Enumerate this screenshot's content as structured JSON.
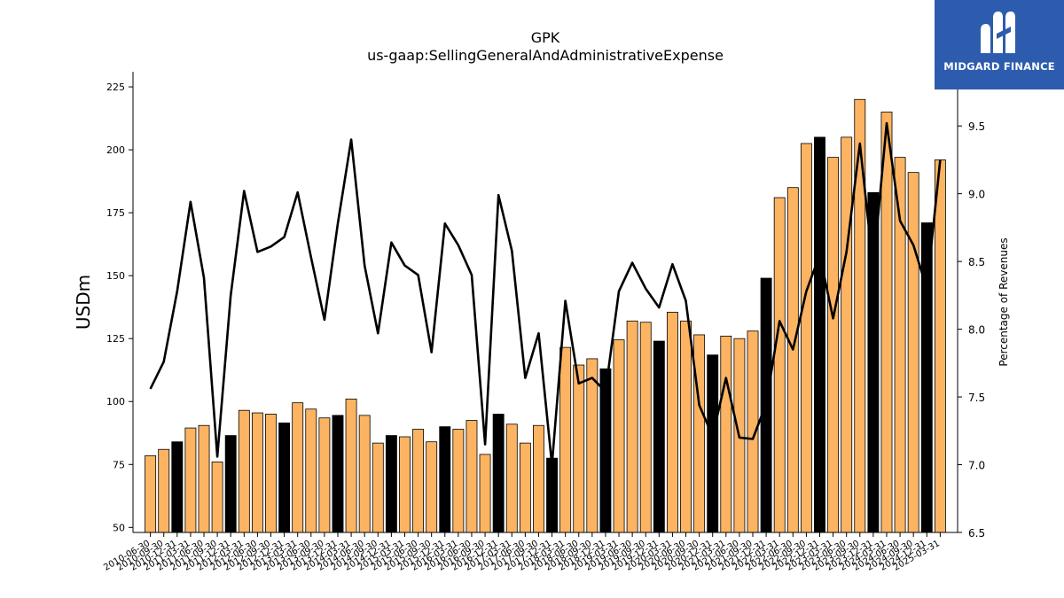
{
  "brand": {
    "name": "MIDGARD FINANCE",
    "color": "#2d5cae",
    "icon": "midgard-logo-icon"
  },
  "colors": {
    "bar_default": "#fdb462",
    "bar_highlight": "#000000",
    "line": "#000000"
  },
  "chart_data": {
    "type": "bar+line",
    "title": "GPK",
    "subtitle": "us-gaap:SellingGeneralAndAdministrativeExpense",
    "ylabel": "USDm",
    "y2label": "Percentage of Revenues",
    "ylim": [
      48,
      231
    ],
    "y2lim": [
      6.5,
      9.9
    ],
    "yticks": [
      50,
      75,
      100,
      125,
      150,
      175,
      200,
      225
    ],
    "y2ticks": [
      6.5,
      7.0,
      7.5,
      8.0,
      8.5,
      9.0,
      9.5
    ],
    "categories": [
      "2010-06-30",
      "2010-09-30",
      "2010-12-31",
      "2011-03-31",
      "2011-06-30",
      "2011-09-30",
      "2011-12-31",
      "2012-03-31",
      "2012-06-30",
      "2012-09-30",
      "2012-12-31",
      "2013-03-31",
      "2013-06-30",
      "2013-09-30",
      "2013-12-31",
      "2014-03-31",
      "2014-06-30",
      "2014-09-30",
      "2014-12-31",
      "2015-03-31",
      "2015-06-30",
      "2015-09-30",
      "2015-12-31",
      "2016-03-31",
      "2016-06-30",
      "2016-09-30",
      "2016-12-31",
      "2017-03-31",
      "2017-06-30",
      "2017-09-30",
      "2017-12-31",
      "2018-03-31",
      "2018-06-30",
      "2018-09-30",
      "2018-12-31",
      "2019-03-31",
      "2019-06-30",
      "2019-09-30",
      "2019-12-31",
      "2020-03-31",
      "2020-06-30",
      "2020-09-30",
      "2020-12-31",
      "2021-03-31",
      "2021-06-30",
      "2021-09-30",
      "2021-12-31",
      "2022-03-31",
      "2022-06-30",
      "2022-09-30",
      "2022-12-31",
      "2023-03-31",
      "2023-06-30",
      "2023-09-30",
      "2023-12-31",
      "2024-03-31",
      "2024-06-30",
      "2024-09-30",
      "2024-12-31",
      "2025-03-31"
    ],
    "bars": {
      "name": "SG&A Expense",
      "values": [
        78.5,
        81,
        84,
        89.5,
        90.5,
        76,
        86.5,
        96.5,
        95.5,
        95,
        91.5,
        99.5,
        97,
        93.5,
        94.5,
        101,
        94.5,
        83.5,
        86.5,
        86,
        89,
        84,
        90,
        89,
        92.5,
        79,
        95,
        91,
        83.5,
        90.5,
        77.5,
        121.5,
        114.5,
        117,
        113,
        124.5,
        132,
        131.5,
        124,
        135.5,
        132,
        126.5,
        118.5,
        126,
        125,
        128,
        149,
        181,
        185,
        202.5,
        205,
        197,
        205,
        220,
        183,
        215,
        197,
        191,
        171,
        196
      ],
      "highlight_quarter": "12-31"
    },
    "line": {
      "name": "Percentage of Revenues",
      "values": [
        7.56,
        7.76,
        8.28,
        8.94,
        8.38,
        7.06,
        8.25,
        9.02,
        8.57,
        8.61,
        8.68,
        9.01,
        8.53,
        8.07,
        8.78,
        9.4,
        8.47,
        7.97,
        8.64,
        8.47,
        8.4,
        7.83,
        8.78,
        8.62,
        8.4,
        7.15,
        8.99,
        8.58,
        7.64,
        7.97,
        7.0,
        8.21,
        7.6,
        7.64,
        7.54,
        8.28,
        8.49,
        8.3,
        8.16,
        8.48,
        8.21,
        7.44,
        7.21,
        7.64,
        7.2,
        7.19,
        7.45,
        8.06,
        7.85,
        8.28,
        8.55,
        8.08,
        8.57,
        9.37,
        8.45,
        9.52,
        8.8,
        8.62,
        8.3,
        9.25
      ]
    }
  }
}
